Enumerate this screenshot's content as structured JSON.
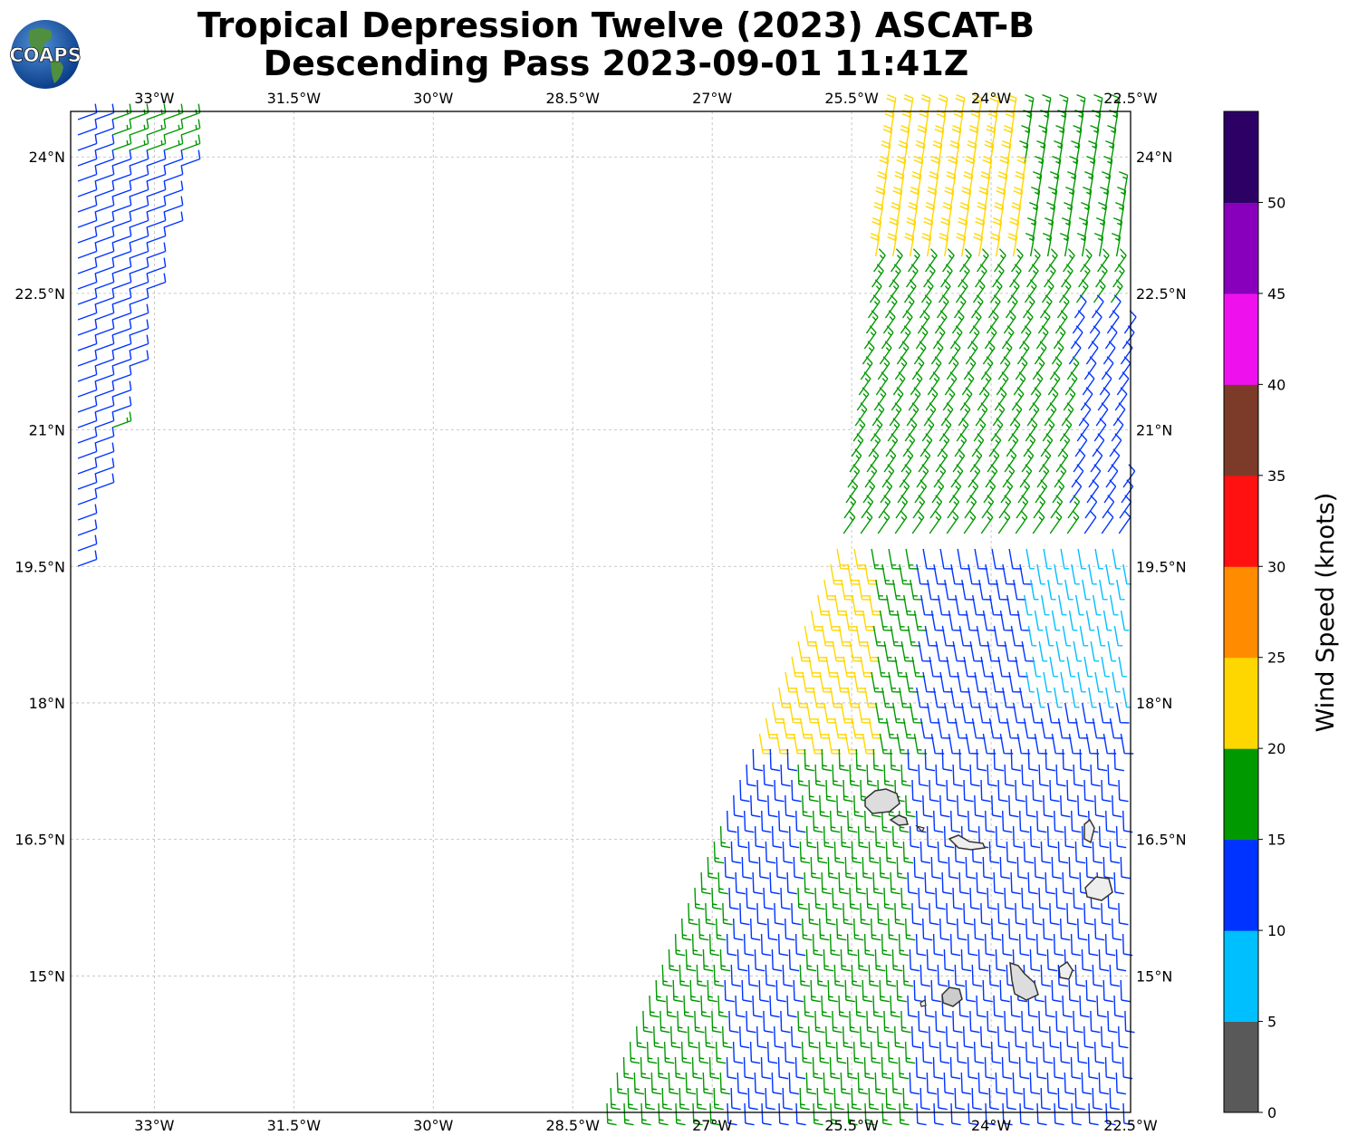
{
  "header": {
    "title_line1": "Tropical Depression Twelve (2023) ASCAT-B",
    "title_line2": "Descending Pass 2023-09-01 11:41Z",
    "logo_text": "COAPS"
  },
  "map": {
    "lon_range": [
      -33.9,
      -22.5
    ],
    "lat_range": [
      13.5,
      24.5
    ],
    "lon_ticks": [
      "33°W",
      "31.5°W",
      "30°W",
      "28.5°W",
      "27°W",
      "25.5°W",
      "24°W",
      "22.5°W"
    ],
    "lat_ticks": [
      "24°N",
      "22.5°N",
      "21°N",
      "19.5°N",
      "18°N",
      "16.5°N",
      "15°N"
    ],
    "gridlines": true,
    "islands": "Cape Verde"
  },
  "colorbar": {
    "label": "Wind Speed (knots)",
    "ticks": [
      "0",
      "5",
      "10",
      "15",
      "20",
      "25",
      "30",
      "35",
      "40",
      "45",
      "50"
    ],
    "colors": [
      "#595959",
      "#00bfff",
      "#0033ff",
      "#009900",
      "#ffd700",
      "#ff8c00",
      "#ff1111",
      "#7b3b28",
      "#ee11ee",
      "#8800bb",
      "#2d0066"
    ]
  }
}
